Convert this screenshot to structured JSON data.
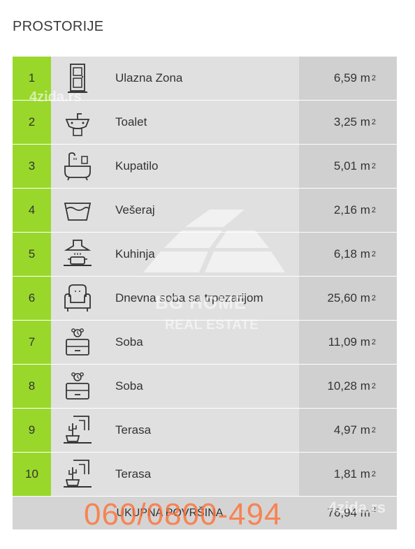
{
  "heading": "PROSTORIJE",
  "rooms": [
    {
      "num": "1",
      "icon": "door-icon",
      "name": "Ulazna Zona",
      "area": "6,59 m",
      "unit_exp": "2"
    },
    {
      "num": "2",
      "icon": "sink-icon",
      "name": "Toalet",
      "area": "3,25 m",
      "unit_exp": "2"
    },
    {
      "num": "3",
      "icon": "bathtub-icon",
      "name": "Kupatilo",
      "area": "5,01 m",
      "unit_exp": "2"
    },
    {
      "num": "4",
      "icon": "laundry-basin-icon",
      "name": "Vešeraj",
      "area": "2,16 m",
      "unit_exp": "2"
    },
    {
      "num": "5",
      "icon": "stove-hood-icon",
      "name": "Kuhinja",
      "area": "6,18 m",
      "unit_exp": "2"
    },
    {
      "num": "6",
      "icon": "armchair-icon",
      "name": "Dnevna soba sa trpezarijom",
      "area": "25,60 m",
      "unit_exp": "2"
    },
    {
      "num": "7",
      "icon": "nightstand-icon",
      "name": "Soba",
      "area": "11,09 m",
      "unit_exp": "2"
    },
    {
      "num": "8",
      "icon": "nightstand-icon",
      "name": "Soba",
      "area": "10,28 m",
      "unit_exp": "2"
    },
    {
      "num": "9",
      "icon": "terrace-plant-icon",
      "name": "Terasa",
      "area": "4,97 m",
      "unit_exp": "2"
    },
    {
      "num": "10",
      "icon": "terrace-plant-icon",
      "name": "Terasa",
      "area": "1,81 m",
      "unit_exp": "2"
    }
  ],
  "total": {
    "label": "UKUPNA POVRŠINA",
    "value": "76,94 m",
    "unit_exp": "2"
  },
  "watermarks": {
    "site": "4zida.rs",
    "brand": "BG HOME",
    "brand_sub": "REAL ESTATE",
    "phone": "060/0800-494"
  },
  "colors": {
    "accent": "#99d82b",
    "row_bg": "#e0e0e0",
    "area_bg": "#d0d0d0",
    "phone": "#ff6e32"
  }
}
